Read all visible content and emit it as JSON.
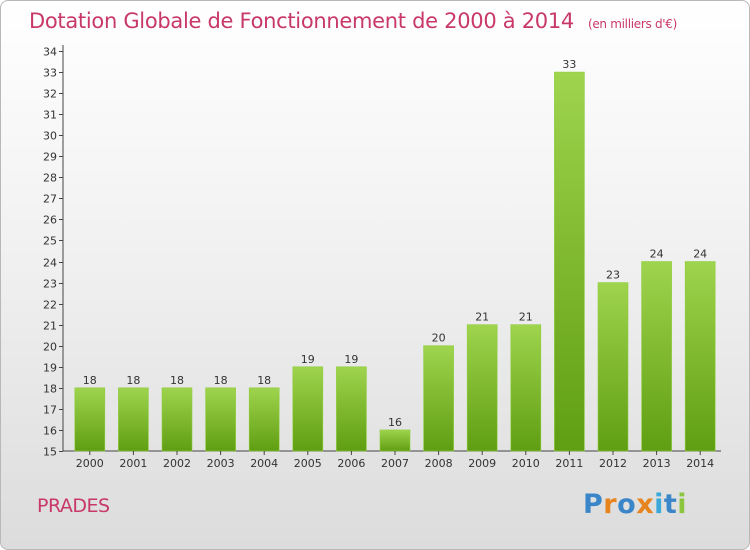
{
  "header": {
    "title": "Dotation Globale de Fonctionnement de 2000 à 2014",
    "unit": "(en milliers d'€)"
  },
  "commune": "PRADES",
  "logo": {
    "text": "Proxiti",
    "letter_colors": [
      "#3a86c8",
      "#e8841e",
      "#3a86c8",
      "#e8841e",
      "#3aa8d8",
      "#3a86c8",
      "#8cc63f"
    ]
  },
  "colors": {
    "title": "#c8386a",
    "bar_top": "#9fd44e",
    "bar_bottom": "#5f9e12",
    "bar_edge": "#8fcc3c"
  },
  "chart_data": {
    "type": "bar",
    "title": "Dotation Globale de Fonctionnement de 2000 à 2014",
    "categories": [
      "2000",
      "2001",
      "2002",
      "2003",
      "2004",
      "2005",
      "2006",
      "2007",
      "2008",
      "2009",
      "2010",
      "2011",
      "2012",
      "2013",
      "2014"
    ],
    "values": [
      18,
      18,
      18,
      18,
      18,
      19,
      19,
      16,
      20,
      21,
      21,
      33,
      23,
      24,
      24
    ],
    "xlabel": "",
    "ylabel": "",
    "ylim": [
      15,
      34
    ],
    "yticks": [
      15,
      16,
      17,
      18,
      19,
      20,
      21,
      22,
      23,
      24,
      25,
      26,
      27,
      28,
      29,
      30,
      31,
      32,
      33,
      34
    ],
    "grid": false
  }
}
